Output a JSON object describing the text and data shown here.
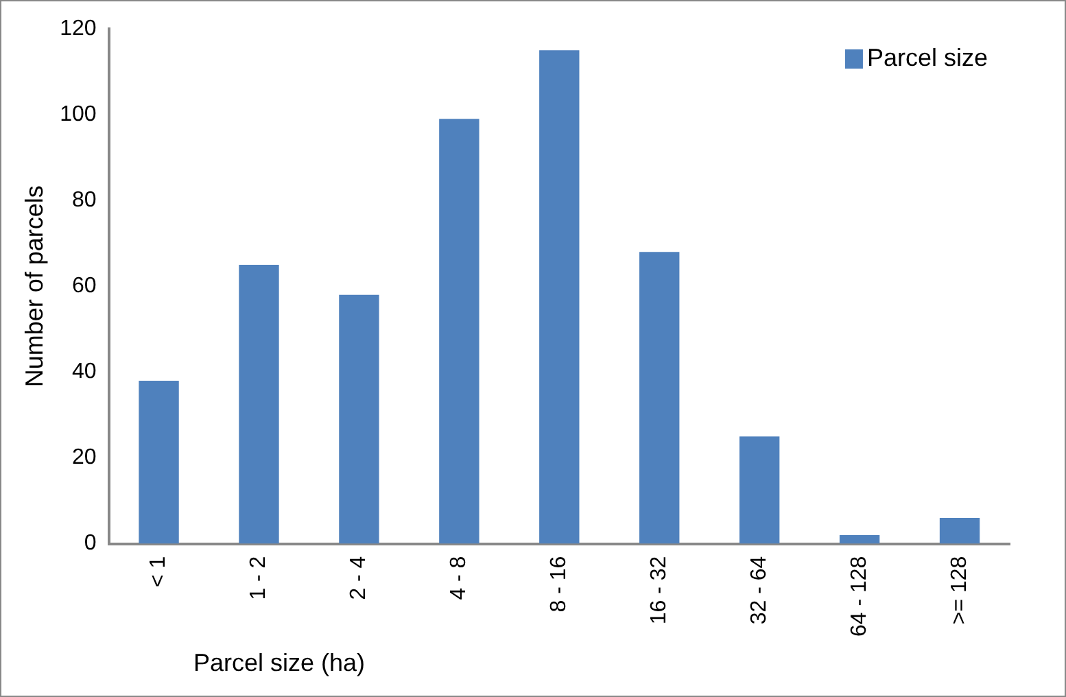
{
  "chart_data": {
    "type": "bar",
    "xlabel": "Parcel size (ha)",
    "ylabel": "Number of parcels",
    "categories": [
      "< 1",
      "1 - 2",
      "2 - 4",
      "4 - 8",
      "8 - 16",
      "16 - 32",
      "32 - 64",
      "64 - 128",
      ">= 128"
    ],
    "series": [
      {
        "name": "Parcel size",
        "color": "#4f81bd",
        "values": [
          38,
          65,
          58,
          99,
          115,
          68,
          25,
          2,
          6
        ]
      }
    ],
    "ylim": [
      0,
      120
    ],
    "yticks": [
      0,
      20,
      40,
      60,
      80,
      100,
      120
    ],
    "grid": false,
    "legend": "top right"
  }
}
